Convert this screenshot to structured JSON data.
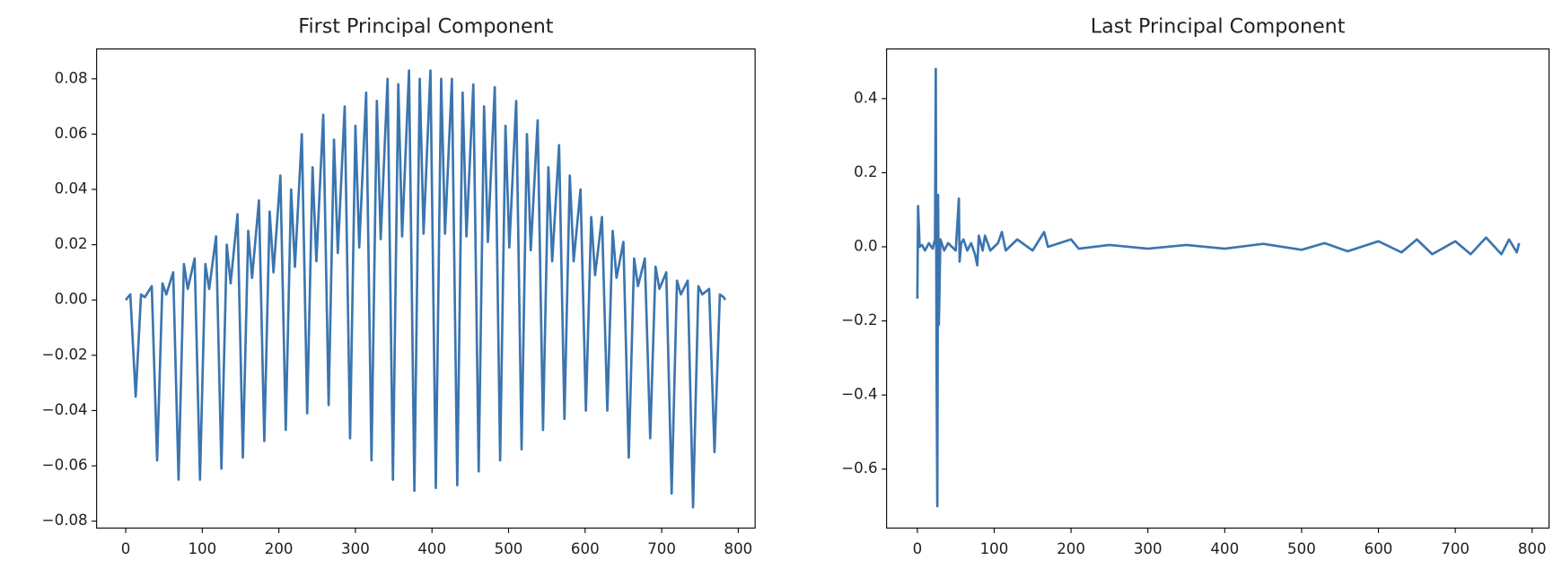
{
  "chart_data": [
    {
      "type": "line",
      "title": "First Principal Component",
      "color": "#3b75af",
      "x": [
        0,
        6,
        13,
        20,
        25,
        34,
        41,
        48,
        53,
        62,
        69,
        76,
        81,
        90,
        97,
        104,
        109,
        118,
        125,
        132,
        137,
        146,
        153,
        160,
        165,
        174,
        181,
        188,
        193,
        202,
        209,
        216,
        221,
        230,
        237,
        244,
        249,
        258,
        265,
        272,
        277,
        286,
        293,
        300,
        305,
        314,
        321,
        328,
        333,
        342,
        349,
        356,
        361,
        370,
        377,
        384,
        389,
        398,
        405,
        412,
        417,
        426,
        433,
        440,
        445,
        454,
        461,
        468,
        473,
        482,
        489,
        496,
        501,
        510,
        517,
        524,
        529,
        538,
        545,
        552,
        557,
        566,
        573,
        580,
        585,
        594,
        601,
        608,
        613,
        622,
        629,
        636,
        641,
        650,
        657,
        664,
        669,
        678,
        685,
        692,
        697,
        706,
        713,
        720,
        725,
        734,
        741,
        748,
        753,
        762,
        769,
        776,
        781,
        783
      ],
      "values": [
        0,
        0.002,
        -0.035,
        0.002,
        0.001,
        0.005,
        -0.058,
        0.006,
        0.002,
        0.01,
        -0.065,
        0.013,
        0.004,
        0.015,
        -0.065,
        0.013,
        0.004,
        0.023,
        -0.061,
        0.02,
        0.006,
        0.031,
        -0.057,
        0.025,
        0.008,
        0.036,
        -0.051,
        0.032,
        0.01,
        0.045,
        -0.047,
        0.04,
        0.012,
        0.06,
        -0.041,
        0.048,
        0.014,
        0.067,
        -0.038,
        0.058,
        0.017,
        0.07,
        -0.05,
        0.063,
        0.019,
        0.075,
        -0.058,
        0.072,
        0.022,
        0.08,
        -0.065,
        0.078,
        0.023,
        0.083,
        -0.069,
        0.08,
        0.024,
        0.083,
        -0.068,
        0.08,
        0.024,
        0.08,
        -0.067,
        0.075,
        0.023,
        0.078,
        -0.062,
        0.07,
        0.021,
        0.077,
        -0.058,
        0.063,
        0.019,
        0.072,
        -0.054,
        0.06,
        0.018,
        0.065,
        -0.047,
        0.048,
        0.014,
        0.056,
        -0.043,
        0.045,
        0.014,
        0.04,
        -0.04,
        0.03,
        0.009,
        0.03,
        -0.04,
        0.025,
        0.008,
        0.021,
        -0.057,
        0.015,
        0.005,
        0.015,
        -0.05,
        0.012,
        0.004,
        0.01,
        -0.07,
        0.007,
        0.002,
        0.007,
        -0.075,
        0.005,
        0.002,
        0.004,
        -0.055,
        0.002,
        0.001,
        0
      ],
      "xlim": [
        -38,
        822
      ],
      "ylim": [
        -0.0825,
        0.0908
      ],
      "xticks": [
        0,
        100,
        200,
        300,
        400,
        500,
        600,
        700,
        800
      ],
      "yticks": [
        {
          "value": -0.08,
          "label": "−0.08"
        },
        {
          "value": -0.06,
          "label": "−0.06"
        },
        {
          "value": -0.04,
          "label": "−0.04"
        },
        {
          "value": -0.02,
          "label": "−0.02"
        },
        {
          "value": 0,
          "label": "0.00"
        },
        0.02,
        0.04,
        0.06,
        0.08
      ]
    },
    {
      "type": "line",
      "title": "Last Principal Component",
      "color": "#3b75af",
      "x": [
        0,
        1,
        3,
        6,
        10,
        15,
        20,
        23,
        24,
        25,
        26,
        27,
        28,
        30,
        35,
        40,
        45,
        50,
        54,
        55,
        57,
        60,
        65,
        70,
        75,
        78,
        80,
        85,
        88,
        95,
        105,
        110,
        115,
        130,
        150,
        165,
        170,
        200,
        210,
        250,
        300,
        350,
        400,
        450,
        500,
        530,
        560,
        600,
        630,
        650,
        670,
        700,
        720,
        740,
        760,
        770,
        780,
        783
      ],
      "values": [
        -0.14,
        0.11,
        0.0,
        0.005,
        -0.01,
        0.01,
        -0.005,
        0.02,
        0.48,
        -0.32,
        -0.7,
        0.14,
        -0.21,
        0.02,
        -0.01,
        0.01,
        0.0,
        -0.01,
        0.13,
        -0.04,
        0.01,
        0.02,
        -0.01,
        0.01,
        -0.02,
        -0.05,
        0.03,
        -0.01,
        0.03,
        -0.01,
        0.01,
        0.04,
        -0.01,
        0.02,
        -0.01,
        0.04,
        0.0,
        0.02,
        -0.005,
        0.005,
        -0.005,
        0.005,
        -0.005,
        0.008,
        -0.008,
        0.01,
        -0.012,
        0.015,
        -0.015,
        0.02,
        -0.02,
        0.015,
        -0.02,
        0.025,
        -0.02,
        0.02,
        -0.015,
        0.01
      ],
      "xlim": [
        -40,
        822
      ],
      "ylim": [
        -0.759,
        0.534
      ],
      "xticks": [
        0,
        100,
        200,
        300,
        400,
        500,
        600,
        700,
        800
      ],
      "yticks": [
        {
          "value": -0.6,
          "label": "−0.6"
        },
        {
          "value": -0.4,
          "label": "−0.4"
        },
        {
          "value": -0.2,
          "label": "−0.2"
        },
        {
          "value": 0,
          "label": "0.0"
        },
        0.2,
        0.4
      ]
    }
  ]
}
